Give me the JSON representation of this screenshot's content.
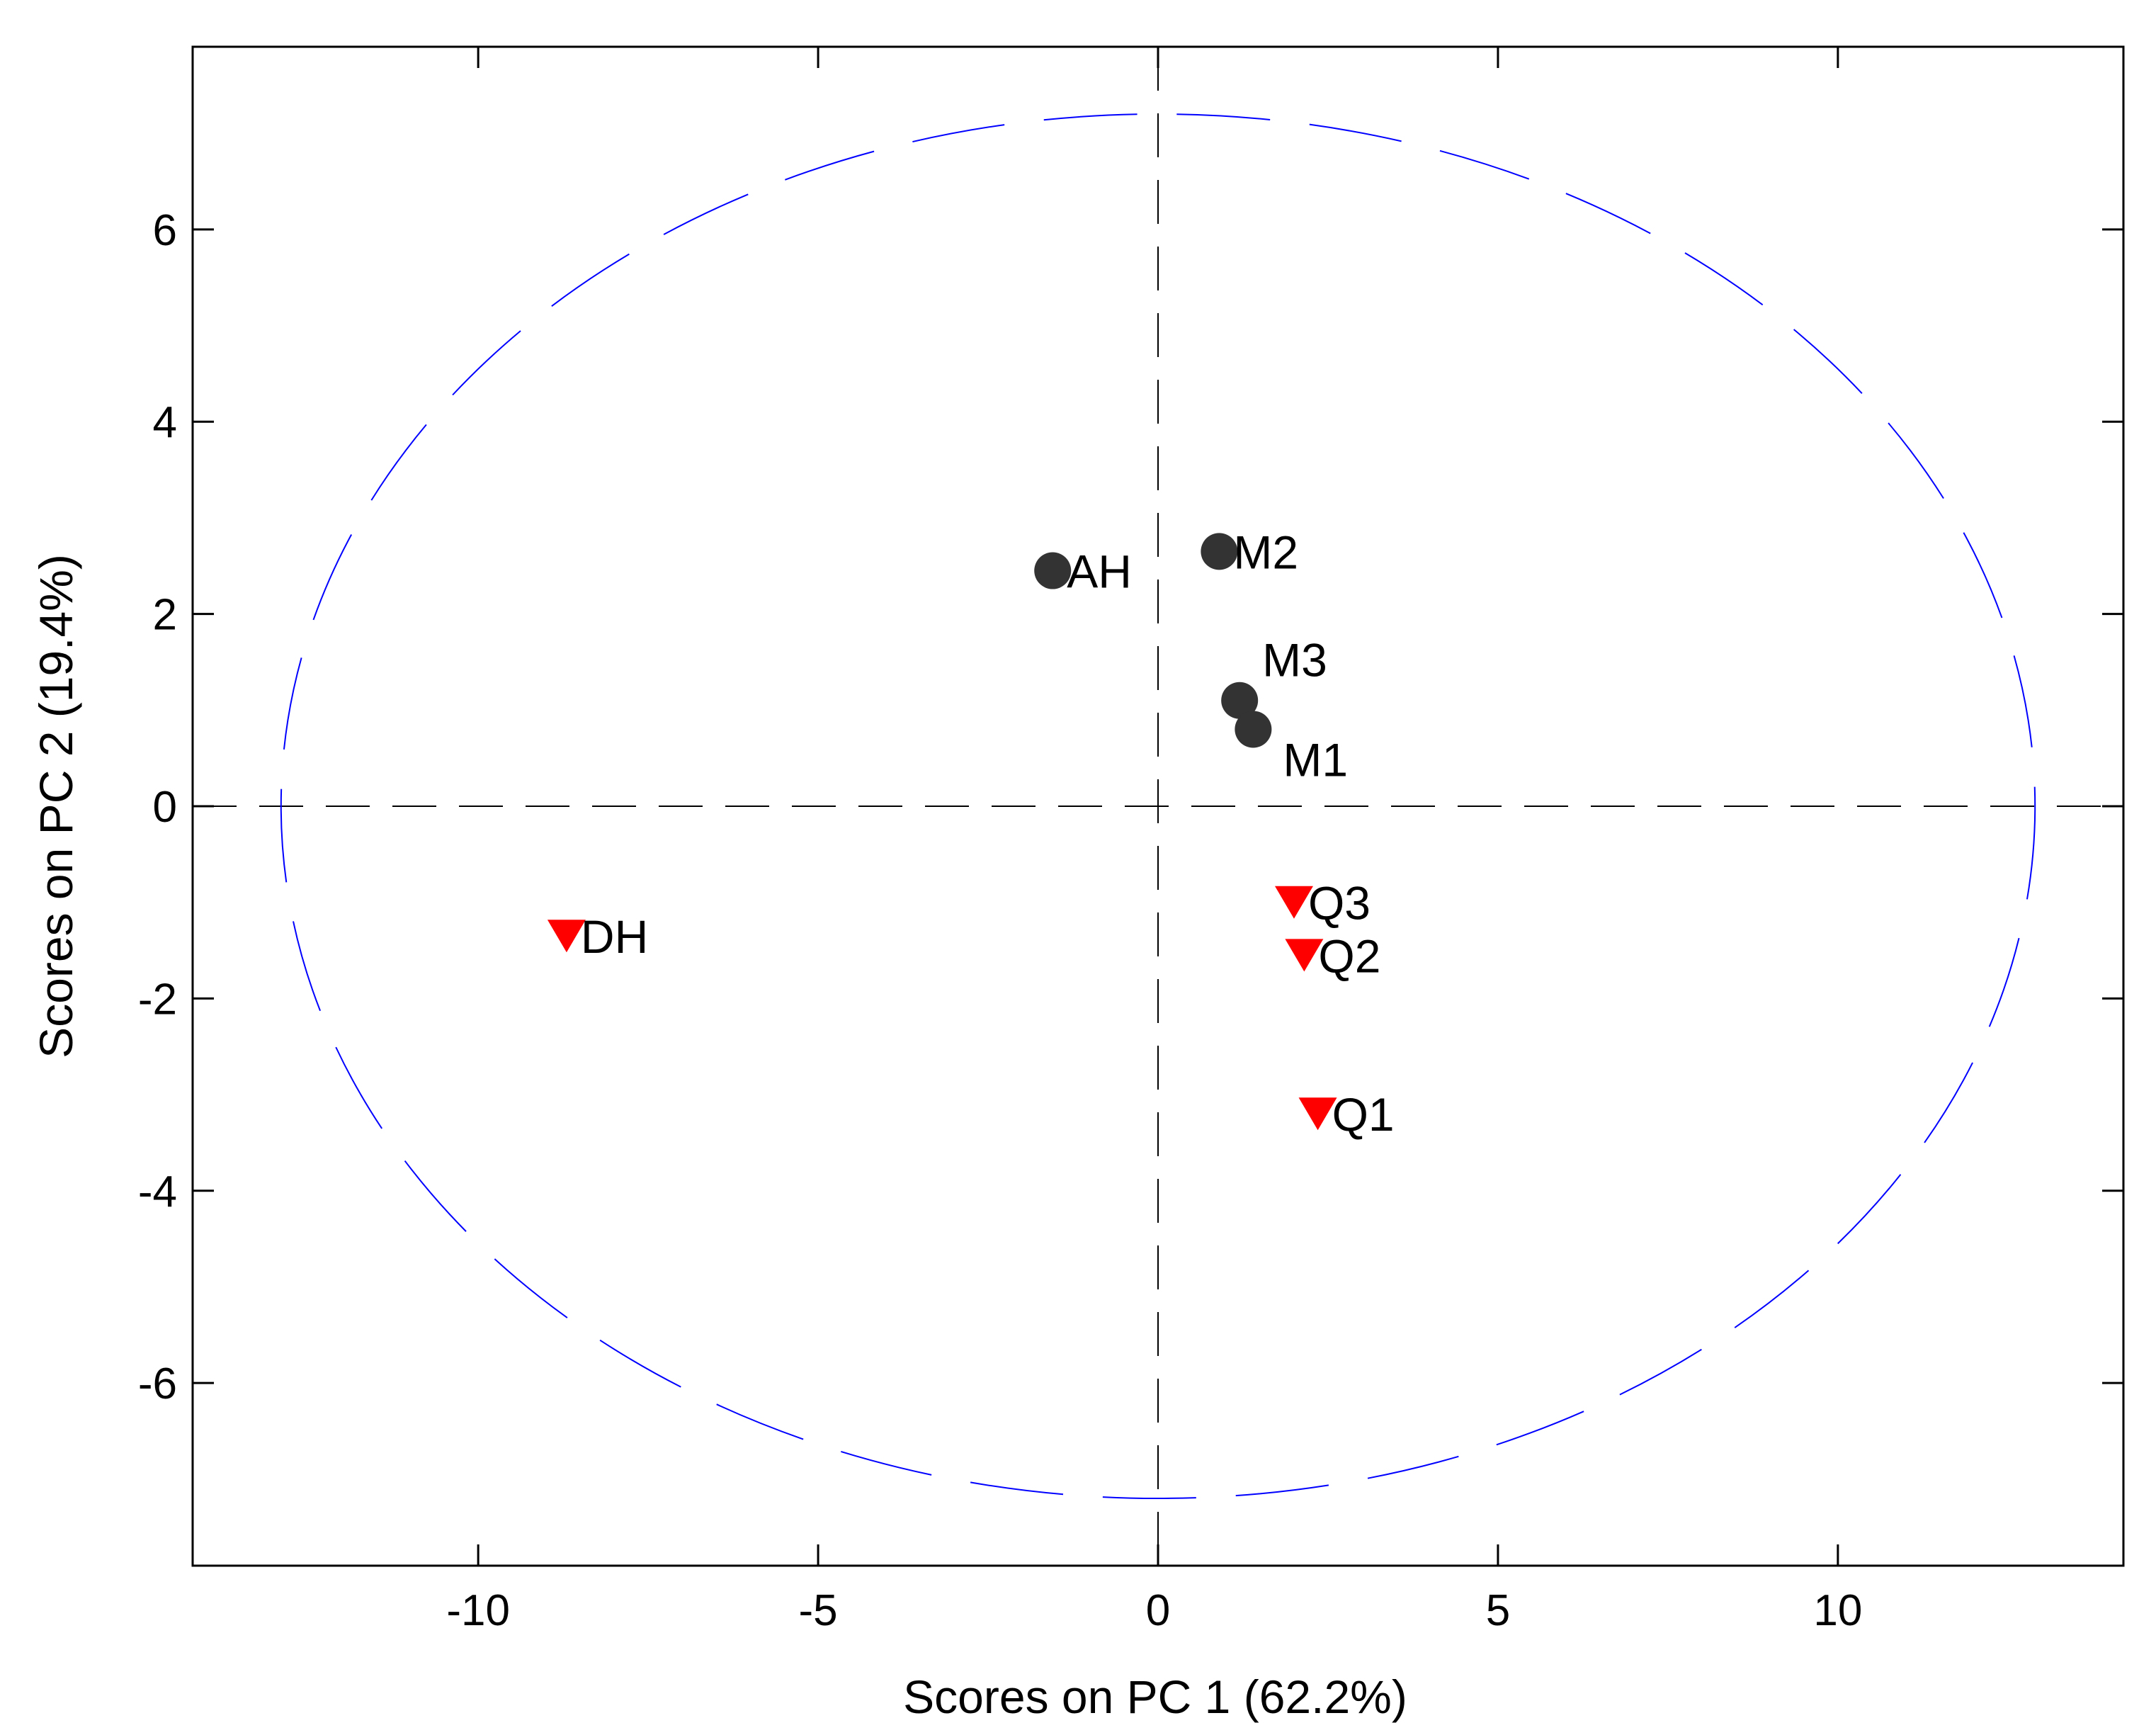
{
  "chart_data": {
    "type": "scatter",
    "xlabel": "Scores on PC 1 (62.2%)",
    "ylabel": "Scores on PC 2 (19.4%)",
    "xlim": [
      -14.2,
      14.2
    ],
    "ylim": [
      -7.9,
      7.9
    ],
    "x_ticks": [
      -10,
      -5,
      0,
      5,
      10
    ],
    "y_ticks": [
      -6,
      -4,
      -2,
      0,
      2,
      4,
      6
    ],
    "reference_lines": {
      "x": 0,
      "y": 0,
      "style": "dashed",
      "color": "#000000"
    },
    "confidence_ellipse": {
      "center": [
        0,
        0
      ],
      "rx": 12.9,
      "ry": 7.2,
      "color": "#0000ff",
      "style": "dashed"
    },
    "grid": false,
    "series": [
      {
        "marker": "circle",
        "color": "#333333",
        "points": [
          {
            "label": "AH",
            "x": -1.55,
            "y": 2.45
          },
          {
            "label": "M2",
            "x": 0.9,
            "y": 2.65
          },
          {
            "label": "M3",
            "x": 1.2,
            "y": 1.1
          },
          {
            "label": "M1",
            "x": 1.4,
            "y": 0.8
          }
        ]
      },
      {
        "marker": "triangle-down",
        "color": "#ff0000",
        "points": [
          {
            "label": "DH",
            "x": -8.7,
            "y": -1.35
          },
          {
            "label": "Q3",
            "x": 2.0,
            "y": -1.0
          },
          {
            "label": "Q2",
            "x": 2.15,
            "y": -1.55
          },
          {
            "label": "Q1",
            "x": 2.35,
            "y": -3.2
          }
        ]
      }
    ]
  }
}
